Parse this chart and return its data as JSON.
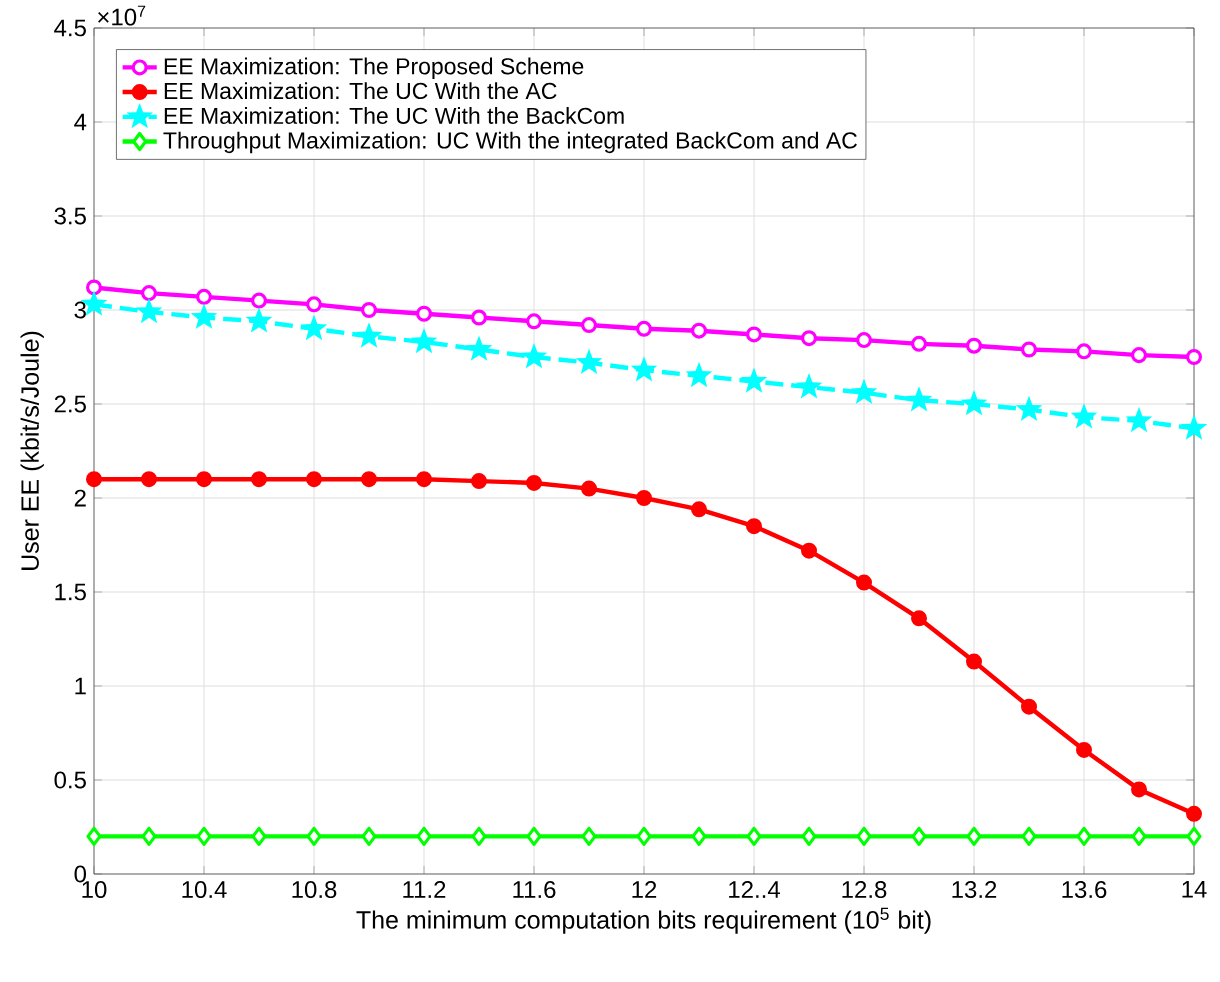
{
  "chart_data": {
    "type": "line",
    "xlabel": "The minimum computation bits requirement (10$^{5}$ bit)",
    "ylabel": "User EE (kbit/s/Joule)",
    "annotations": [
      "×10$^{7}$"
    ],
    "x": [
      10,
      10.2,
      10.4,
      10.6,
      10.8,
      11,
      11.2,
      11.4,
      11.6,
      11.8,
      12,
      12.2,
      12.4,
      12.6,
      12.8,
      13,
      13.2,
      13.4,
      13.6,
      13.8,
      14
    ],
    "series": [
      {
        "name": "EE Maximization: The Proposed Scheme",
        "color": "#ff00ff",
        "marker": "circle",
        "values": [
          3.12,
          3.09,
          3.07,
          3.05,
          3.03,
          3.0,
          2.98,
          2.96,
          2.94,
          2.92,
          2.9,
          2.89,
          2.87,
          2.85,
          2.84,
          2.82,
          2.81,
          2.79,
          2.78,
          2.76,
          2.75
        ]
      },
      {
        "name": "EE Maximization: The UC  With the AC",
        "color": "#ff0000",
        "marker": "circle",
        "values": [
          2.1,
          2.1,
          2.1,
          2.1,
          2.1,
          2.1,
          2.1,
          2.09,
          2.08,
          2.05,
          2.0,
          1.94,
          1.85,
          1.72,
          1.55,
          1.36,
          1.13,
          0.89,
          0.66,
          0.45,
          0.32
        ]
      },
      {
        "name": "EE Maximization: The UC  With the BackCom",
        "color": "#00ffff",
        "marker": "star",
        "line_style": "dashed",
        "values": [
          3.03,
          2.99,
          2.96,
          2.94,
          2.9,
          2.86,
          2.83,
          2.79,
          2.75,
          2.72,
          2.68,
          2.65,
          2.62,
          2.59,
          2.56,
          2.52,
          2.5,
          2.47,
          2.43,
          2.41,
          2.37
        ]
      },
      {
        "name": "Throughput Maximization: UC  With the integrated BackCom and AC",
        "color": "#00ff00",
        "marker": "diamond",
        "values": [
          0.2,
          0.2,
          0.2,
          0.2,
          0.2,
          0.2,
          0.2,
          0.2,
          0.2,
          0.2,
          0.2,
          0.2,
          0.2,
          0.2,
          0.2,
          0.2,
          0.2,
          0.2,
          0.2,
          0.2,
          0.2
        ]
      }
    ],
    "xlim": [
      10,
      14
    ],
    "xticks": [
      10,
      10.4,
      10.8,
      11.2,
      11.6,
      12,
      {
        "value": 12.4,
        "label": "12..4"
      },
      12.8,
      13.2,
      13.6,
      14
    ],
    "ylim": [
      0,
      4.5
    ],
    "yticks": [
      0,
      0.5,
      1,
      1.5,
      2,
      2.5,
      3,
      3.5,
      4,
      4.5
    ],
    "grid": true,
    "legend": "top left"
  }
}
